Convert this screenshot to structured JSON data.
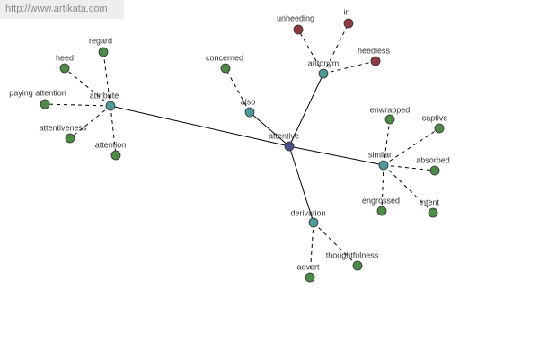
{
  "header": {
    "url": "http://www.artikata.com"
  },
  "nodes": [
    {
      "label": "attentive"
    },
    {
      "label": "attribute"
    },
    {
      "label": "also"
    },
    {
      "label": "antonym"
    },
    {
      "label": "similar"
    },
    {
      "label": "derivation"
    },
    {
      "label": "regard"
    },
    {
      "label": "heed"
    },
    {
      "label": "paying attention"
    },
    {
      "label": "attentiveness"
    },
    {
      "label": "attention"
    },
    {
      "label": "concerned"
    },
    {
      "label": "unheeding"
    },
    {
      "label": "in"
    },
    {
      "label": "heedless"
    },
    {
      "label": "enwrapped"
    },
    {
      "label": "captive"
    },
    {
      "label": "absorbed"
    },
    {
      "label": "engrossed"
    },
    {
      "label": "intent"
    },
    {
      "label": "thoughtfulness"
    },
    {
      "label": "advert"
    }
  ]
}
